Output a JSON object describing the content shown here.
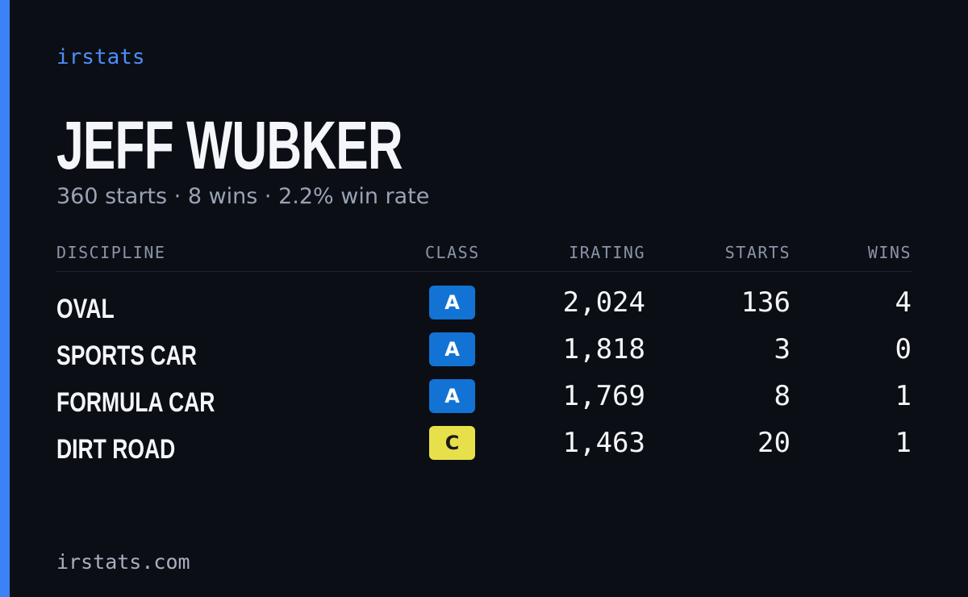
{
  "brand": "irstats",
  "driver": {
    "name": "JEFF WUBKER",
    "summary": "360 starts · 8 wins · 2.2% win rate"
  },
  "table": {
    "headers": [
      "DISCIPLINE",
      "CLASS",
      "IRATING",
      "STARTS",
      "WINS"
    ],
    "rows": [
      [
        "OVAL",
        "A",
        "2,024",
        "136",
        "4"
      ],
      [
        "SPORTS CAR",
        "A",
        "1,818",
        "3",
        "0"
      ],
      [
        "FORMULA CAR",
        "A",
        "1,769",
        "8",
        "1"
      ],
      [
        "DIRT ROAD",
        "C",
        "1,463",
        "20",
        "1"
      ]
    ]
  },
  "footer": "irstats.com"
}
